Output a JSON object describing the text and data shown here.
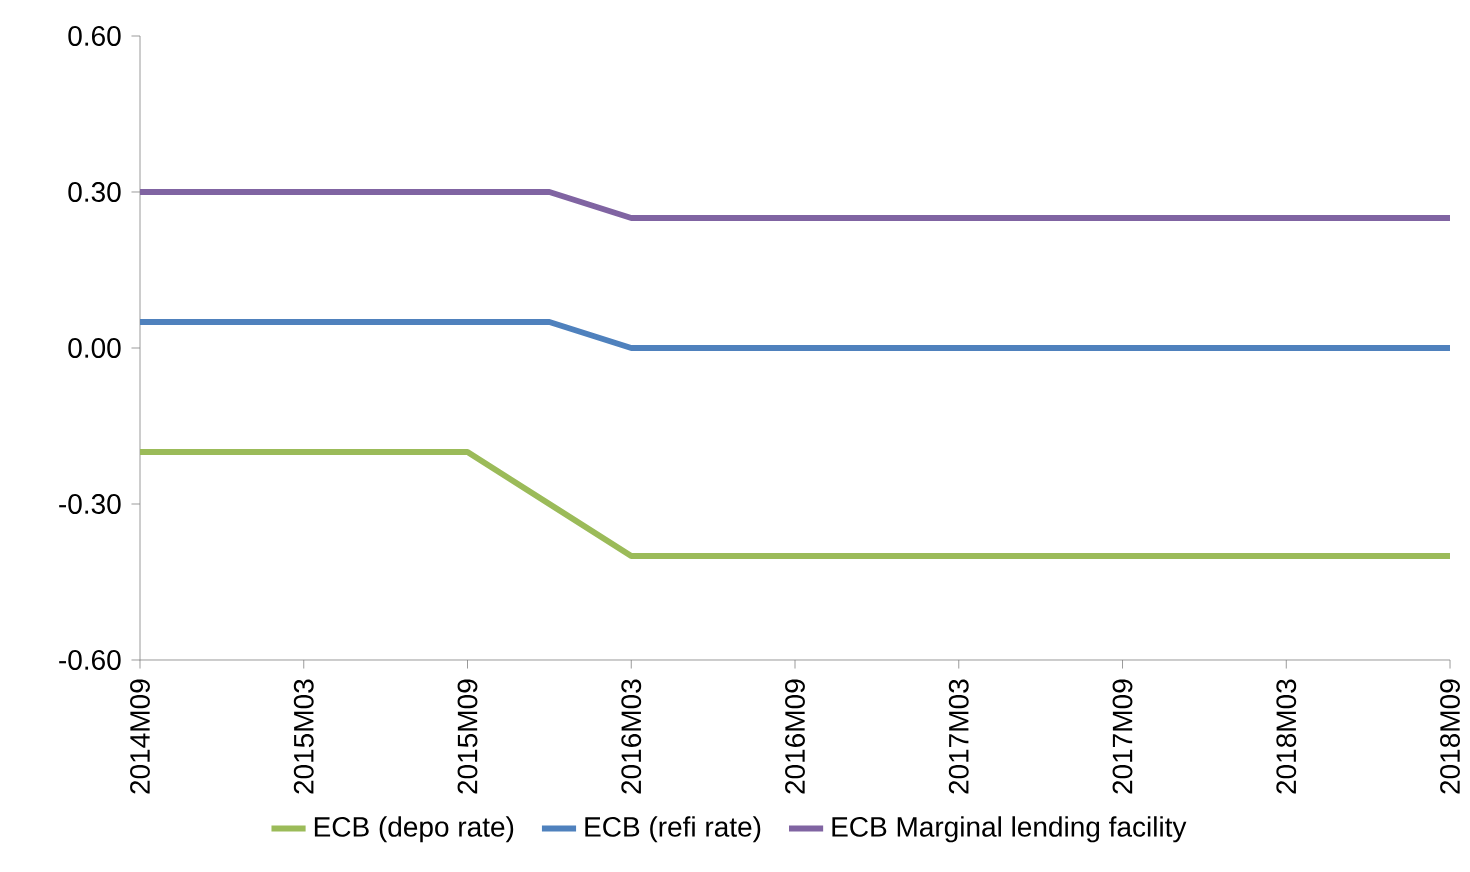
{
  "chart_data": {
    "type": "line",
    "categories": [
      "2014M09",
      null,
      "2015M03",
      null,
      "2015M09",
      null,
      "2016M03",
      null,
      "2016M09",
      null,
      "2017M03",
      null,
      "2017M09",
      null,
      "2018M03",
      null,
      "2018M09"
    ],
    "series": [
      {
        "name": "ECB (depo rate)",
        "color": "#9bbb59",
        "values": [
          -0.2,
          -0.2,
          -0.2,
          -0.2,
          -0.2,
          -0.3,
          -0.4,
          -0.4,
          -0.4,
          -0.4,
          -0.4,
          -0.4,
          -0.4,
          -0.4,
          -0.4,
          -0.4,
          -0.4
        ]
      },
      {
        "name": "ECB (refi rate)",
        "color": "#4f81bd",
        "values": [
          0.05,
          0.05,
          0.05,
          0.05,
          0.05,
          0.05,
          0.0,
          0.0,
          0.0,
          0.0,
          0.0,
          0.0,
          0.0,
          0.0,
          0.0,
          0.0,
          0.0
        ]
      },
      {
        "name": "ECB Marginal lending facility",
        "color": "#8064a2",
        "values": [
          0.3,
          0.3,
          0.3,
          0.3,
          0.3,
          0.3,
          0.25,
          0.25,
          0.25,
          0.25,
          0.25,
          0.25,
          0.25,
          0.25,
          0.25,
          0.25,
          0.25
        ]
      }
    ],
    "ylim": [
      -0.6,
      0.6
    ],
    "yticks": [
      {
        "value": -0.6,
        "label": "-0.60"
      },
      {
        "value": -0.3,
        "label": "-0.30"
      },
      {
        "value": 0,
        "label": "0.00"
      },
      {
        "value": 0.3,
        "label": "0.30"
      },
      {
        "value": 0.6,
        "label": "0.60"
      }
    ],
    "legend": "bottom",
    "marker": "none",
    "line_style": "solid"
  }
}
